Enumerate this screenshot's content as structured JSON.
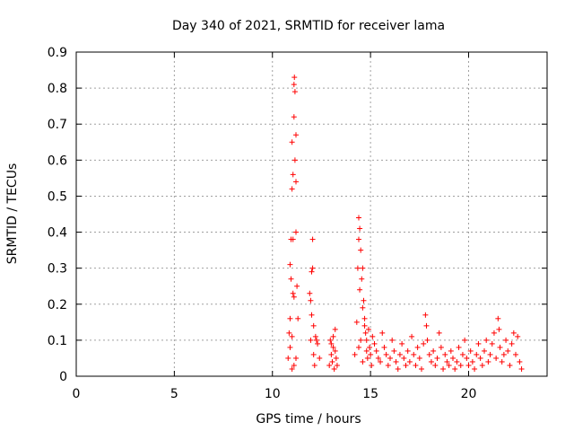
{
  "chart_data": {
    "type": "scatter",
    "title": "Day 340 of 2021, SRMTID for receiver lama",
    "xlabel": "GPS time / hours",
    "ylabel": "SRMTID / TECUs",
    "xlim": [
      0,
      24
    ],
    "ylim": [
      0,
      0.9
    ],
    "xticks": [
      0,
      5,
      10,
      15,
      20
    ],
    "yticks": [
      0,
      0.1,
      0.2,
      0.3,
      0.4,
      0.5,
      0.6,
      0.7,
      0.8,
      0.9
    ],
    "xtick_labels": [
      "0",
      "5",
      "10",
      "15",
      "20"
    ],
    "ytick_labels": [
      "0",
      "0.1",
      "0.2",
      "0.3",
      "0.4",
      "0.5",
      "0.6",
      "0.7",
      "0.8",
      "0.9"
    ],
    "grid": true,
    "marker": "+",
    "color": "#ff0000",
    "series": [
      {
        "name": "SRMTID",
        "points": [
          [
            10.8,
            0.05
          ],
          [
            10.85,
            0.12
          ],
          [
            10.9,
            0.31
          ],
          [
            10.9,
            0.16
          ],
          [
            10.95,
            0.38
          ],
          [
            11.0,
            0.65
          ],
          [
            11.0,
            0.52
          ],
          [
            11.05,
            0.56
          ],
          [
            11.05,
            0.38
          ],
          [
            11.1,
            0.72
          ],
          [
            11.1,
            0.81
          ],
          [
            11.12,
            0.83
          ],
          [
            11.15,
            0.79
          ],
          [
            11.15,
            0.6
          ],
          [
            11.2,
            0.67
          ],
          [
            11.2,
            0.54
          ],
          [
            11.2,
            0.4
          ],
          [
            11.25,
            0.25
          ],
          [
            11.1,
            0.22
          ],
          [
            11.05,
            0.23
          ],
          [
            10.95,
            0.27
          ],
          [
            11.0,
            0.11
          ],
          [
            10.9,
            0.08
          ],
          [
            11.1,
            0.03
          ],
          [
            11.3,
            0.16
          ],
          [
            11.0,
            0.02
          ],
          [
            11.2,
            0.05
          ],
          [
            11.9,
            0.23
          ],
          [
            11.95,
            0.21
          ],
          [
            12.0,
            0.29
          ],
          [
            12.0,
            0.17
          ],
          [
            12.05,
            0.38
          ],
          [
            12.05,
            0.3
          ],
          [
            12.1,
            0.14
          ],
          [
            11.95,
            0.1
          ],
          [
            12.1,
            0.06
          ],
          [
            12.2,
            0.11
          ],
          [
            12.3,
            0.09
          ],
          [
            12.25,
            0.1
          ],
          [
            12.4,
            0.05
          ],
          [
            12.15,
            0.03
          ],
          [
            12.9,
            0.03
          ],
          [
            13.0,
            0.06
          ],
          [
            13.0,
            0.09
          ],
          [
            13.05,
            0.04
          ],
          [
            13.1,
            0.11
          ],
          [
            13.1,
            0.08
          ],
          [
            13.15,
            0.02
          ],
          [
            13.2,
            0.07
          ],
          [
            13.2,
            0.13
          ],
          [
            13.25,
            0.05
          ],
          [
            13.3,
            0.03
          ],
          [
            12.95,
            0.1
          ],
          [
            14.2,
            0.06
          ],
          [
            14.3,
            0.15
          ],
          [
            14.35,
            0.3
          ],
          [
            14.4,
            0.38
          ],
          [
            14.4,
            0.44
          ],
          [
            14.45,
            0.41
          ],
          [
            14.45,
            0.24
          ],
          [
            14.5,
            0.35
          ],
          [
            14.55,
            0.27
          ],
          [
            14.6,
            0.3
          ],
          [
            14.6,
            0.19
          ],
          [
            14.65,
            0.21
          ],
          [
            14.7,
            0.14
          ],
          [
            14.7,
            0.16
          ],
          [
            14.75,
            0.12
          ],
          [
            14.8,
            0.1
          ],
          [
            14.8,
            0.07
          ],
          [
            14.85,
            0.05
          ],
          [
            14.5,
            0.1
          ],
          [
            14.4,
            0.08
          ],
          [
            14.9,
            0.13
          ],
          [
            14.95,
            0.08
          ],
          [
            15.0,
            0.06
          ],
          [
            15.05,
            0.03
          ],
          [
            14.6,
            0.04
          ],
          [
            15.1,
            0.11
          ],
          [
            15.2,
            0.09
          ],
          [
            15.3,
            0.07
          ],
          [
            15.4,
            0.05
          ],
          [
            15.5,
            0.04
          ],
          [
            15.6,
            0.12
          ],
          [
            15.7,
            0.08
          ],
          [
            15.8,
            0.06
          ],
          [
            15.9,
            0.03
          ],
          [
            16.0,
            0.05
          ],
          [
            16.1,
            0.1
          ],
          [
            16.2,
            0.07
          ],
          [
            16.3,
            0.04
          ],
          [
            16.4,
            0.02
          ],
          [
            16.5,
            0.06
          ],
          [
            16.6,
            0.09
          ],
          [
            16.7,
            0.05
          ],
          [
            16.8,
            0.03
          ],
          [
            16.9,
            0.07
          ],
          [
            17.0,
            0.04
          ],
          [
            17.1,
            0.11
          ],
          [
            17.2,
            0.06
          ],
          [
            17.3,
            0.03
          ],
          [
            17.4,
            0.08
          ],
          [
            17.5,
            0.05
          ],
          [
            17.6,
            0.02
          ],
          [
            17.7,
            0.09
          ],
          [
            17.8,
            0.17
          ],
          [
            17.85,
            0.14
          ],
          [
            17.9,
            0.1
          ],
          [
            18.0,
            0.06
          ],
          [
            18.1,
            0.04
          ],
          [
            18.2,
            0.07
          ],
          [
            18.3,
            0.03
          ],
          [
            18.4,
            0.05
          ],
          [
            18.5,
            0.12
          ],
          [
            18.6,
            0.08
          ],
          [
            18.7,
            0.02
          ],
          [
            18.8,
            0.06
          ],
          [
            18.9,
            0.04
          ],
          [
            19.0,
            0.03
          ],
          [
            19.1,
            0.07
          ],
          [
            19.2,
            0.05
          ],
          [
            19.3,
            0.02
          ],
          [
            19.4,
            0.04
          ],
          [
            19.5,
            0.08
          ],
          [
            19.6,
            0.03
          ],
          [
            19.7,
            0.06
          ],
          [
            19.8,
            0.1
          ],
          [
            19.9,
            0.05
          ],
          [
            20.0,
            0.03
          ],
          [
            20.1,
            0.07
          ],
          [
            20.2,
            0.04
          ],
          [
            20.3,
            0.02
          ],
          [
            20.4,
            0.06
          ],
          [
            20.5,
            0.09
          ],
          [
            20.6,
            0.05
          ],
          [
            20.7,
            0.03
          ],
          [
            20.8,
            0.07
          ],
          [
            20.9,
            0.1
          ],
          [
            21.0,
            0.04
          ],
          [
            21.1,
            0.06
          ],
          [
            21.2,
            0.09
          ],
          [
            21.3,
            0.12
          ],
          [
            21.4,
            0.05
          ],
          [
            21.5,
            0.16
          ],
          [
            21.55,
            0.13
          ],
          [
            21.6,
            0.08
          ],
          [
            21.7,
            0.04
          ],
          [
            21.8,
            0.06
          ],
          [
            21.9,
            0.1
          ],
          [
            22.0,
            0.07
          ],
          [
            22.1,
            0.03
          ],
          [
            22.2,
            0.09
          ],
          [
            22.3,
            0.12
          ],
          [
            22.4,
            0.06
          ],
          [
            22.5,
            0.11
          ],
          [
            22.6,
            0.04
          ],
          [
            22.7,
            0.02
          ]
        ]
      }
    ]
  }
}
